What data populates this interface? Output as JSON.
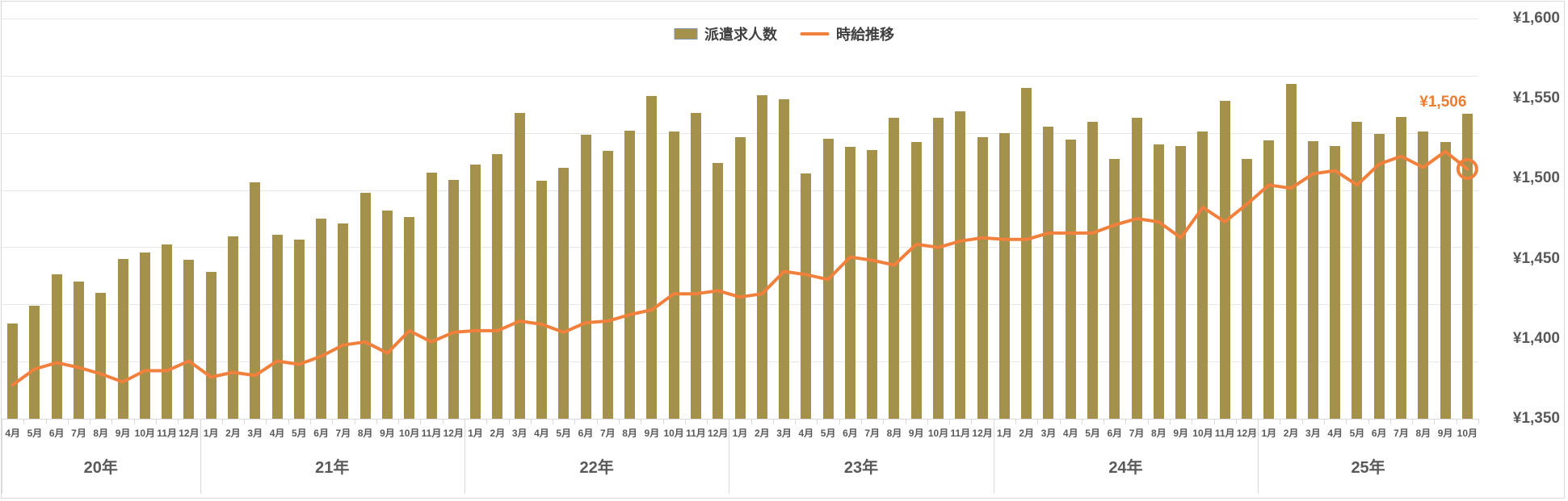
{
  "legend": {
    "items": [
      {
        "label": "派遣求人数",
        "type": "bar"
      },
      {
        "label": "時給推移",
        "type": "line"
      }
    ]
  },
  "colors": {
    "bar_fill": "#a3914c",
    "bar_swatch_border": "#8496b0",
    "line_stroke": "#f0803c",
    "annotation_text": "#ed7d31",
    "axis_text": "#595959",
    "legend_text": "#3f3f3f",
    "gridline": "#e8e8e8",
    "axis_line": "#d9d9d9"
  },
  "chart_data": {
    "type": "combo",
    "title": "",
    "legend_position": "top-center",
    "grid": true,
    "x_axis": {
      "year_groups": [
        {
          "label": "20年",
          "months": [
            "4月",
            "5月",
            "6月",
            "7月",
            "8月",
            "9月",
            "10月",
            "11月",
            "12月"
          ]
        },
        {
          "label": "21年",
          "months": [
            "1月",
            "2月",
            "3月",
            "4月",
            "5月",
            "6月",
            "7月",
            "8月",
            "9月",
            "10月",
            "11月",
            "12月"
          ]
        },
        {
          "label": "22年",
          "months": [
            "1月",
            "2月",
            "3月",
            "4月",
            "5月",
            "6月",
            "7月",
            "8月",
            "9月",
            "10月",
            "11月",
            "12月"
          ]
        },
        {
          "label": "23年",
          "months": [
            "1月",
            "2月",
            "3月",
            "4月",
            "5月",
            "6月",
            "7月",
            "8月",
            "9月",
            "10月",
            "11月",
            "12月"
          ]
        },
        {
          "label": "24年",
          "months": [
            "1月",
            "2月",
            "3月",
            "4月",
            "5月",
            "6月",
            "7月",
            "8月",
            "9月",
            "10月",
            "11月",
            "12月"
          ]
        },
        {
          "label": "25年",
          "months": [
            "1月",
            "2月",
            "3月",
            "4月",
            "5月",
            "6月",
            "7月",
            "8月",
            "9月",
            "10月"
          ]
        }
      ]
    },
    "y_axis_right": {
      "prefix": "¥",
      "min": 1350,
      "max": 1600,
      "step": 50,
      "tick_labels": [
        "¥1,600",
        "¥1,550",
        "¥1,500",
        "¥1,450",
        "¥1,400",
        "¥1,350"
      ]
    },
    "series": [
      {
        "name": "派遣求人数",
        "type": "bar",
        "axis": "hidden-left",
        "note": "axis not labeled in source; values are bar heights as % of plot height",
        "values_pct": [
          23.7,
          28.2,
          36.1,
          34.2,
          31.4,
          40.0,
          41.5,
          43.6,
          39.7,
          36.6,
          45.6,
          59.1,
          45.9,
          44.8,
          50.0,
          48.8,
          56.4,
          52.0,
          50.5,
          61.5,
          59.7,
          63.6,
          66.1,
          76.4,
          59.4,
          62.8,
          70.9,
          67.0,
          72.0,
          80.6,
          71.7,
          76.4,
          64.0,
          70.4,
          80.8,
          79.8,
          61.3,
          70.0,
          68.0,
          67.1,
          75.2,
          69.2,
          75.3,
          76.9,
          70.4,
          71.4,
          82.6,
          73.0,
          69.7,
          74.2,
          65.0,
          75.2,
          68.5,
          68.1,
          71.7,
          79.4,
          64.9,
          69.5,
          83.6,
          69.4,
          68.2,
          74.1,
          71.2,
          75.5,
          71.8,
          69.2,
          76.3
        ]
      },
      {
        "name": "時給推移",
        "type": "line",
        "axis": "right",
        "unit": "¥",
        "values_yen": [
          1371,
          1381,
          1385,
          1382,
          1378,
          1373,
          1380,
          1380,
          1386,
          1376,
          1379,
          1377,
          1386,
          1384,
          1389,
          1396,
          1398,
          1391,
          1405,
          1398,
          1404,
          1405,
          1405,
          1411,
          1409,
          1404,
          1410,
          1411,
          1415,
          1418,
          1428,
          1428,
          1430,
          1426,
          1428,
          1442,
          1440,
          1437,
          1451,
          1449,
          1446,
          1459,
          1457,
          1461,
          1463,
          1462,
          1462,
          1466,
          1466,
          1466,
          1471,
          1475,
          1473,
          1463,
          1482,
          1473,
          1484,
          1496,
          1494,
          1503,
          1505,
          1496,
          1509,
          1514,
          1507,
          1517,
          1506
        ]
      }
    ],
    "annotation": {
      "text": "¥1,506",
      "target": "last-point"
    }
  }
}
